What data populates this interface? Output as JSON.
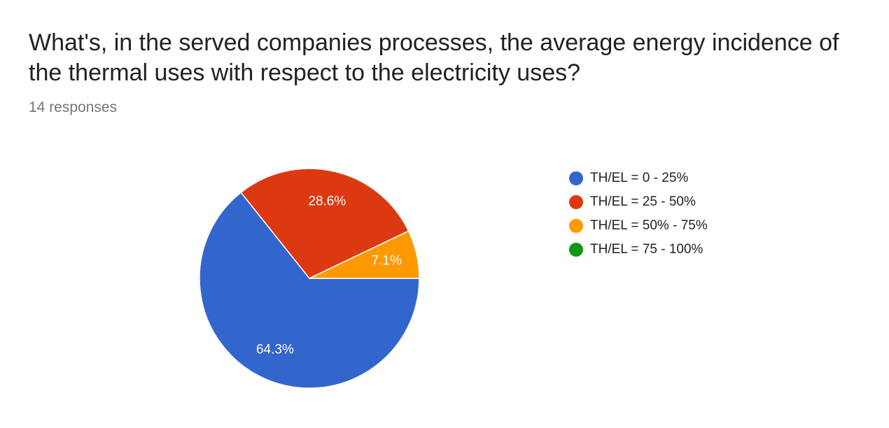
{
  "chart_data": {
    "type": "pie",
    "title": "What's, in the served companies processes, the average energy incidence of the thermal uses with respect to the electricity uses?",
    "subtitle": "14 responses",
    "legend_position": "right",
    "slices": [
      {
        "label": "TH/EL = 0 - 25%",
        "value": 64.3,
        "display": "64.3%",
        "color": "#3366cc"
      },
      {
        "label": "TH/EL = 25 - 50%",
        "value": 28.6,
        "display": "28.6%",
        "color": "#dc3912"
      },
      {
        "label": "TH/EL = 50% - 75%",
        "value": 7.1,
        "display": "7.1%",
        "color": "#ff9900"
      },
      {
        "label": "TH/EL = 75 - 100%",
        "value": 0,
        "display": "",
        "color": "#109618"
      }
    ]
  }
}
